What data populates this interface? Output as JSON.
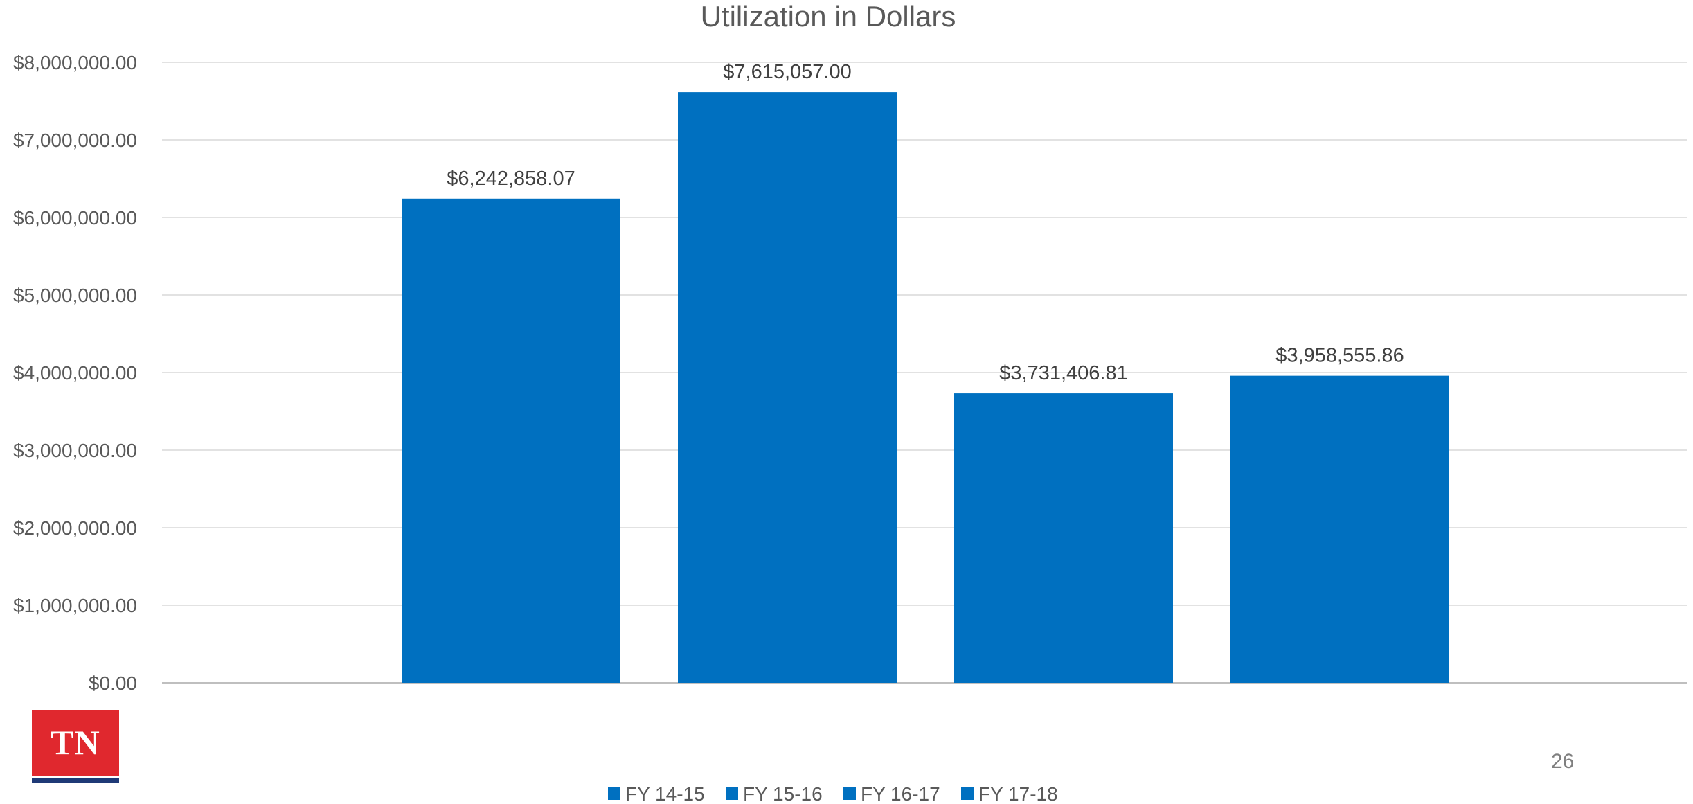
{
  "chart_data": {
    "type": "bar",
    "title": "Utilization in Dollars",
    "categories": [
      "FY 14-15",
      "FY 15-16",
      "FY 16-17",
      "FY 17-18"
    ],
    "values": [
      6242858.07,
      7615057.0,
      3731406.81,
      3958555.86
    ],
    "data_labels": [
      "$6,242,858.07",
      "$7,615,057.00",
      "$3,731,406.81",
      "$3,958,555.86"
    ],
    "y_ticks": [
      0,
      1000000,
      2000000,
      3000000,
      4000000,
      5000000,
      6000000,
      7000000,
      8000000
    ],
    "y_tick_labels": [
      "$0.00",
      "$1,000,000.00",
      "$2,000,000.00",
      "$3,000,000.00",
      "$4,000,000.00",
      "$5,000,000.00",
      "$6,000,000.00",
      "$7,000,000.00",
      "$8,000,000.00"
    ],
    "ylim": [
      0,
      8000000
    ],
    "xlabel": "",
    "ylabel": "",
    "grid": true,
    "legend": "bottom",
    "legend_entries": [
      "FY 14-15",
      "FY 15-16",
      "FY 16-17",
      "FY 17-18"
    ],
    "bar_color": "#0070c0"
  },
  "logo": {
    "text": "TN",
    "color": "#e0282e",
    "bar_color": "#1f3a77"
  },
  "page_number": "26"
}
